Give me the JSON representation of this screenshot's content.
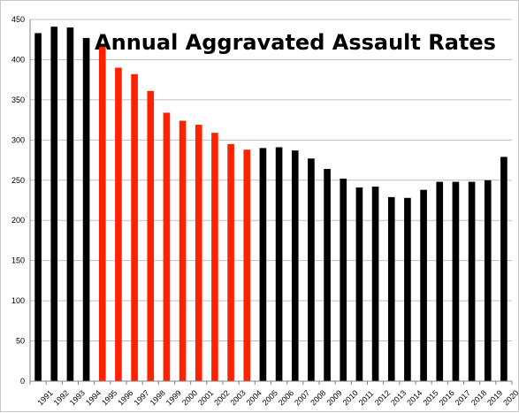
{
  "chart_data": {
    "type": "bar",
    "title": "Annual Aggravated Assault Rates",
    "xlabel": "",
    "ylabel": "",
    "ylim": [
      0,
      450
    ],
    "yticks": [
      0,
      50,
      100,
      150,
      200,
      250,
      300,
      350,
      400,
      450
    ],
    "grid": true,
    "legend": "none",
    "categories": [
      "1991",
      "1992",
      "1993",
      "1994",
      "1995",
      "1996",
      "1997",
      "1998",
      "1999",
      "2000",
      "2001",
      "2002",
      "2003",
      "2004",
      "2005",
      "2006",
      "2007",
      "2008",
      "2009",
      "2010",
      "2011",
      "2012",
      "2013",
      "2014",
      "2015",
      "2016",
      "2017",
      "2018",
      "2019",
      "2020"
    ],
    "values": [
      433,
      441,
      440,
      427,
      418,
      390,
      382,
      361,
      334,
      324,
      319,
      309,
      295,
      288,
      290,
      291,
      287,
      277,
      264,
      252,
      241,
      242,
      229,
      228,
      238,
      248,
      248,
      248,
      250,
      279
    ],
    "colors": {
      "default_bar": "#000000",
      "highlight_bar": "#ff2200",
      "gridline": "#bfbfbf",
      "axis": "#808080"
    },
    "highlighted_categories": [
      "1995",
      "1996",
      "1997",
      "1998",
      "1999",
      "2000",
      "2001",
      "2002",
      "2003",
      "2004"
    ]
  }
}
